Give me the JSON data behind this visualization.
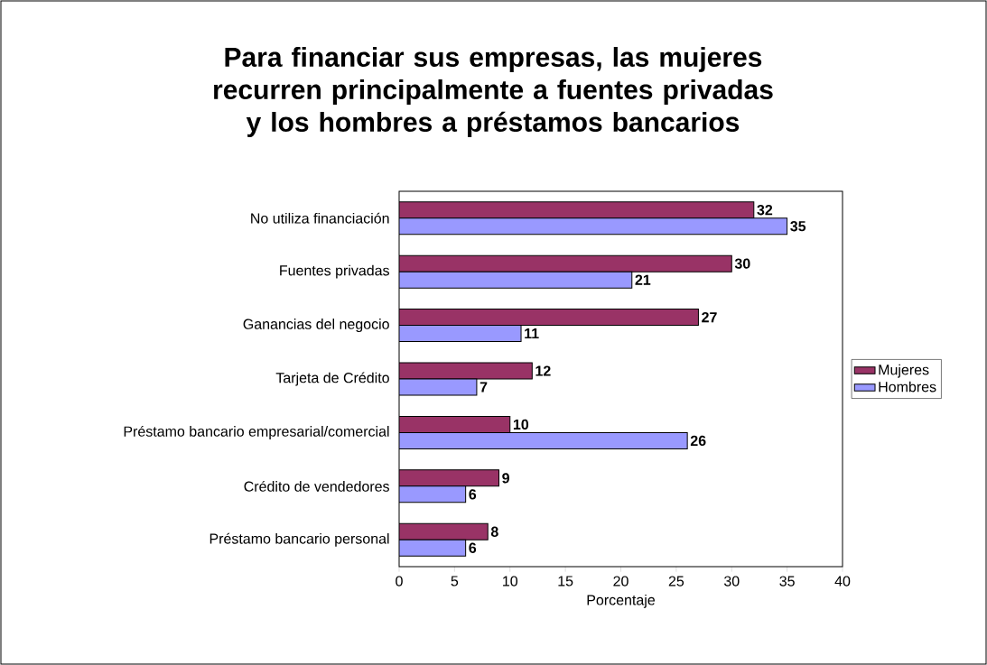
{
  "chart_data": {
    "type": "bar",
    "orientation": "horizontal",
    "title": "Para financiar sus empresas, las mujeres recurren principalmente a fuentes privadas y los hombres a préstamos bancarios",
    "xlabel": "Porcentaje",
    "categories": [
      "No utiliza financiación",
      "Fuentes privadas",
      "Ganancias del negocio",
      "Tarjeta de Crédito",
      "Préstamo bancario empresarial/comercial",
      "Crédito de vendedores",
      "Préstamo bancario personal"
    ],
    "series": [
      {
        "name": "Mujeres",
        "color": "#993366",
        "values": [
          32,
          30,
          27,
          12,
          10,
          9,
          8
        ]
      },
      {
        "name": "Hombres",
        "color": "#9999ff",
        "values": [
          35,
          21,
          11,
          7,
          26,
          6,
          6
        ]
      }
    ],
    "xlim": [
      0,
      40
    ],
    "xticks": [
      0,
      5,
      10,
      15,
      20,
      25,
      30,
      35,
      40
    ],
    "data_labels": true,
    "legend": "right"
  }
}
